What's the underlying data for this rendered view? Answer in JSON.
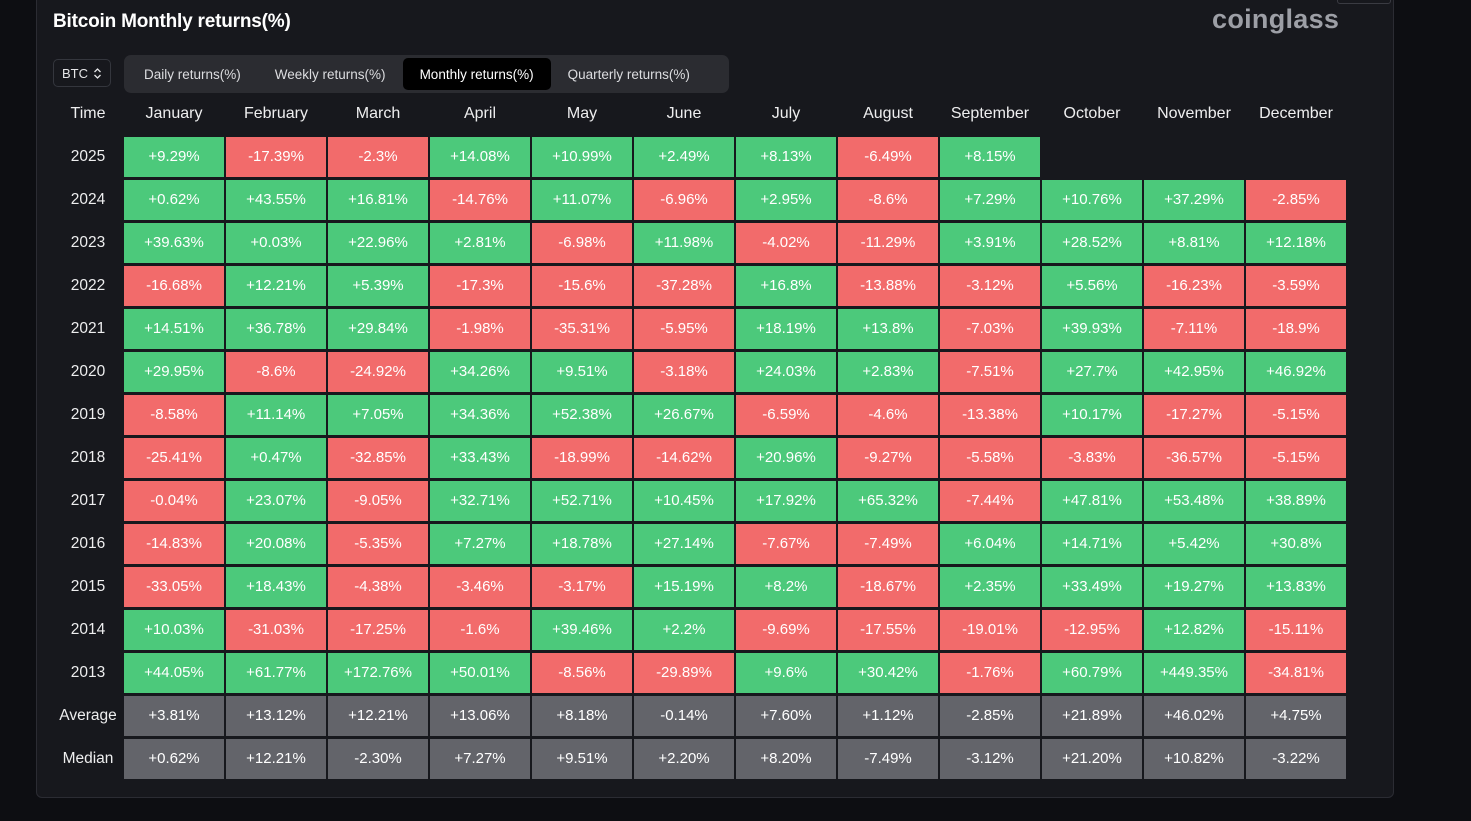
{
  "title": "Bitcoin Monthly returns(%)",
  "brand": "coinglass",
  "asset_selector": {
    "value": "BTC",
    "icon": "chevron-up-down-icon"
  },
  "tabs": [
    {
      "label": "Daily returns(%)",
      "active": false
    },
    {
      "label": "Weekly returns(%)",
      "active": false
    },
    {
      "label": "Monthly returns(%)",
      "active": true
    },
    {
      "label": "Quarterly returns(%)",
      "active": false
    }
  ],
  "colors": {
    "positive": "#4cc97b",
    "negative": "#f26b6b",
    "summary": "#63646a",
    "panel": "#17181d"
  },
  "chart_data": {
    "type": "heatmap",
    "row_header": "Time",
    "columns": [
      "January",
      "February",
      "March",
      "April",
      "May",
      "June",
      "July",
      "August",
      "September",
      "October",
      "November",
      "December"
    ],
    "rows": [
      {
        "label": "2025",
        "values": [
          "+9.29%",
          "-17.39%",
          "-2.3%",
          "+14.08%",
          "+10.99%",
          "+2.49%",
          "+8.13%",
          "-6.49%",
          "+8.15%",
          null,
          null,
          null
        ]
      },
      {
        "label": "2024",
        "values": [
          "+0.62%",
          "+43.55%",
          "+16.81%",
          "-14.76%",
          "+11.07%",
          "-6.96%",
          "+2.95%",
          "-8.6%",
          "+7.29%",
          "+10.76%",
          "+37.29%",
          "-2.85%"
        ]
      },
      {
        "label": "2023",
        "values": [
          "+39.63%",
          "+0.03%",
          "+22.96%",
          "+2.81%",
          "-6.98%",
          "+11.98%",
          "-4.02%",
          "-11.29%",
          "+3.91%",
          "+28.52%",
          "+8.81%",
          "+12.18%"
        ]
      },
      {
        "label": "2022",
        "values": [
          "-16.68%",
          "+12.21%",
          "+5.39%",
          "-17.3%",
          "-15.6%",
          "-37.28%",
          "+16.8%",
          "-13.88%",
          "-3.12%",
          "+5.56%",
          "-16.23%",
          "-3.59%"
        ]
      },
      {
        "label": "2021",
        "values": [
          "+14.51%",
          "+36.78%",
          "+29.84%",
          "-1.98%",
          "-35.31%",
          "-5.95%",
          "+18.19%",
          "+13.8%",
          "-7.03%",
          "+39.93%",
          "-7.11%",
          "-18.9%"
        ]
      },
      {
        "label": "2020",
        "values": [
          "+29.95%",
          "-8.6%",
          "-24.92%",
          "+34.26%",
          "+9.51%",
          "-3.18%",
          "+24.03%",
          "+2.83%",
          "-7.51%",
          "+27.7%",
          "+42.95%",
          "+46.92%"
        ]
      },
      {
        "label": "2019",
        "values": [
          "-8.58%",
          "+11.14%",
          "+7.05%",
          "+34.36%",
          "+52.38%",
          "+26.67%",
          "-6.59%",
          "-4.6%",
          "-13.38%",
          "+10.17%",
          "-17.27%",
          "-5.15%"
        ]
      },
      {
        "label": "2018",
        "values": [
          "-25.41%",
          "+0.47%",
          "-32.85%",
          "+33.43%",
          "-18.99%",
          "-14.62%",
          "+20.96%",
          "-9.27%",
          "-5.58%",
          "-3.83%",
          "-36.57%",
          "-5.15%"
        ]
      },
      {
        "label": "2017",
        "values": [
          "-0.04%",
          "+23.07%",
          "-9.05%",
          "+32.71%",
          "+52.71%",
          "+10.45%",
          "+17.92%",
          "+65.32%",
          "-7.44%",
          "+47.81%",
          "+53.48%",
          "+38.89%"
        ]
      },
      {
        "label": "2016",
        "values": [
          "-14.83%",
          "+20.08%",
          "-5.35%",
          "+7.27%",
          "+18.78%",
          "+27.14%",
          "-7.67%",
          "-7.49%",
          "+6.04%",
          "+14.71%",
          "+5.42%",
          "+30.8%"
        ]
      },
      {
        "label": "2015",
        "values": [
          "-33.05%",
          "+18.43%",
          "-4.38%",
          "-3.46%",
          "-3.17%",
          "+15.19%",
          "+8.2%",
          "-18.67%",
          "+2.35%",
          "+33.49%",
          "+19.27%",
          "+13.83%"
        ]
      },
      {
        "label": "2014",
        "values": [
          "+10.03%",
          "-31.03%",
          "-17.25%",
          "-1.6%",
          "+39.46%",
          "+2.2%",
          "-9.69%",
          "-17.55%",
          "-19.01%",
          "-12.95%",
          "+12.82%",
          "-15.11%"
        ]
      },
      {
        "label": "2013",
        "values": [
          "+44.05%",
          "+61.77%",
          "+172.76%",
          "+50.01%",
          "-8.56%",
          "-29.89%",
          "+9.6%",
          "+30.42%",
          "-1.76%",
          "+60.79%",
          "+449.35%",
          "-34.81%"
        ]
      }
    ],
    "summary_rows": [
      {
        "label": "Average",
        "values": [
          "+3.81%",
          "+13.12%",
          "+12.21%",
          "+13.06%",
          "+8.18%",
          "-0.14%",
          "+7.60%",
          "+1.12%",
          "-2.85%",
          "+21.89%",
          "+46.02%",
          "+4.75%"
        ]
      },
      {
        "label": "Median",
        "values": [
          "+0.62%",
          "+12.21%",
          "-2.30%",
          "+7.27%",
          "+9.51%",
          "+2.20%",
          "+8.20%",
          "-7.49%",
          "-3.12%",
          "+21.20%",
          "+10.82%",
          "-3.22%"
        ]
      }
    ]
  }
}
